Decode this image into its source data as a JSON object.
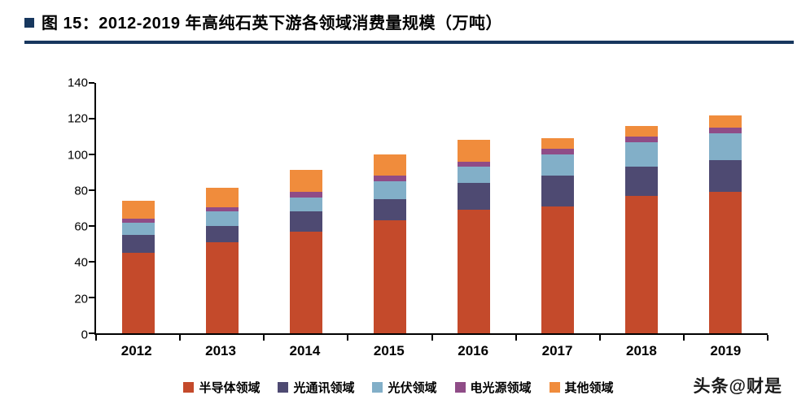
{
  "header": {
    "title": "图 15：2012-2019 年高纯石英下游各领域消费量规模（万吨）"
  },
  "watermark": {
    "text": "头条@财是"
  },
  "colors": {
    "title_rule": "#17375E",
    "axis": "#000000"
  },
  "chart_data": {
    "type": "bar",
    "stacked": true,
    "title": "2012-2019 年高纯石英下游各领域消费量规模（万吨）",
    "categories": [
      "2012",
      "2013",
      "2014",
      "2015",
      "2016",
      "2017",
      "2018",
      "2019"
    ],
    "series": [
      {
        "name": "半导体领域",
        "color": "#C44A2B",
        "values": [
          45,
          51,
          57,
          63,
          69,
          71,
          77,
          79
        ]
      },
      {
        "name": "光通讯领域",
        "color": "#4E4A72",
        "values": [
          10,
          9,
          11,
          12,
          15,
          17,
          16,
          18
        ]
      },
      {
        "name": "光伏领域",
        "color": "#82AFC8",
        "values": [
          7,
          8,
          8,
          10,
          9,
          12,
          14,
          15
        ]
      },
      {
        "name": "电光源领域",
        "color": "#8F4C87",
        "values": [
          2,
          2.5,
          3,
          3,
          3,
          3,
          3,
          3
        ]
      },
      {
        "name": "其他领域",
        "color": "#F08C3C",
        "values": [
          10,
          11,
          12.5,
          12,
          12,
          6,
          6,
          7
        ]
      }
    ],
    "xlabel": "",
    "ylabel": "",
    "ylim": [
      0,
      140
    ],
    "yticks": [
      0,
      20,
      40,
      60,
      80,
      100,
      120,
      140
    ],
    "legend_position": "bottom",
    "grid": false
  }
}
